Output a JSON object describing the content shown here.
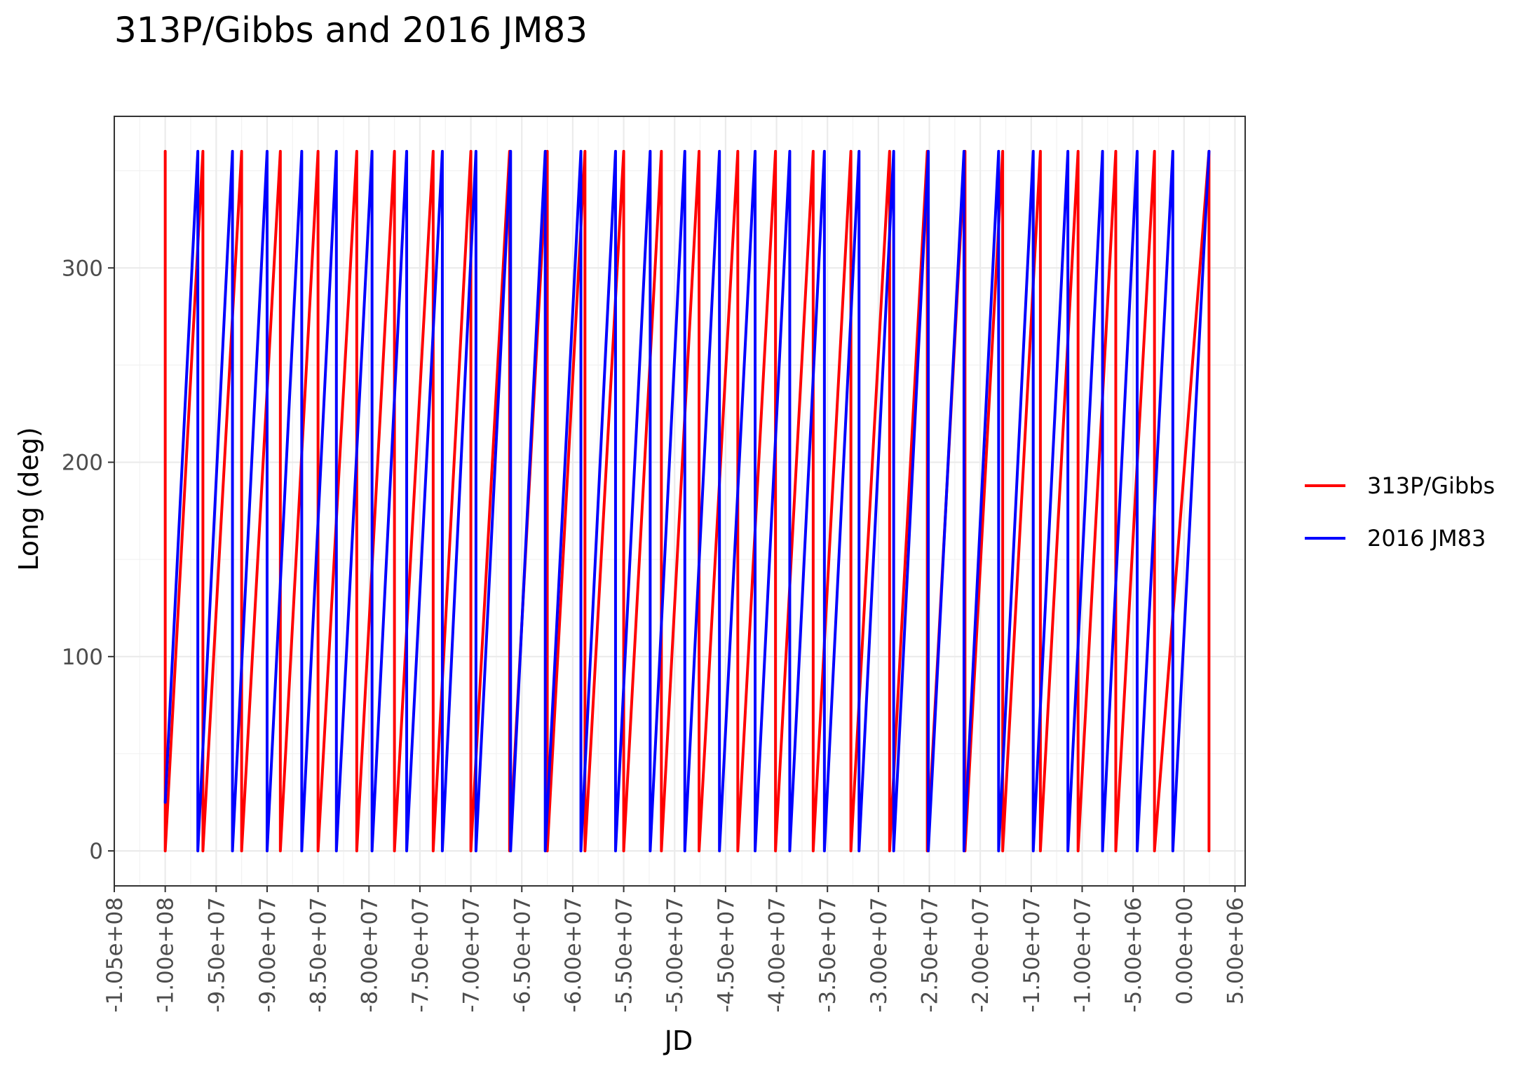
{
  "chart_data": {
    "type": "line",
    "title": "313P/Gibbs and 2016 JM83",
    "xlabel": "JD",
    "ylabel": "Long (deg)",
    "xlim": [
      -105000000,
      6000000
    ],
    "ylim": [
      -18,
      378
    ],
    "x_ticks": [
      -105000000,
      -100000000,
      -95000000,
      -90000000,
      -85000000,
      -80000000,
      -75000000,
      -70000000,
      -65000000,
      -60000000,
      -55000000,
      -50000000,
      -45000000,
      -40000000,
      -35000000,
      -30000000,
      -25000000,
      -20000000,
      -15000000,
      -10000000,
      -5000000,
      0,
      5000000
    ],
    "x_tick_labels": [
      "-1.05e+08",
      "-1.00e+08",
      "-9.50e+07",
      "-9.00e+07",
      "-8.50e+07",
      "-8.00e+07",
      "-7.50e+07",
      "-7.00e+07",
      "-6.50e+07",
      "-6.00e+07",
      "-5.50e+07",
      "-5.00e+07",
      "-4.50e+07",
      "-4.00e+07",
      "-3.50e+07",
      "-3.00e+07",
      "-2.50e+07",
      "-2.00e+07",
      "-1.50e+07",
      "-1.00e+07",
      "-5.00e+06",
      "0.00e+00",
      "5.00e+06"
    ],
    "y_ticks": [
      0,
      100,
      200,
      300
    ],
    "y_tick_labels": [
      "0",
      "100",
      "200",
      "300"
    ],
    "grid": true,
    "legend_position": "right",
    "series": [
      {
        "name": "313P/Gibbs",
        "color": "#ff0000",
        "x_start": -100000000,
        "x_end": 2450000,
        "wrap_x": [
          -100000000,
          -96300000,
          -92500000,
          -88700000,
          -85000000,
          -81200000,
          -77500000,
          -73700000,
          -70000000,
          -66200000,
          -62500000,
          -58800000,
          -55000000,
          -51300000,
          -47600000,
          -43800000,
          -40100000,
          -36400000,
          -32700000,
          -28900000,
          -25200000,
          -21500000,
          -17800000,
          -14100000,
          -10400000,
          -6700000,
          -2900000,
          2450000
        ],
        "wrap_low": 0,
        "wrap_high": 360
      },
      {
        "name": "2016 JM83",
        "color": "#0000ff",
        "x_start": -100000000,
        "x_end": 2450000,
        "start_value": 25,
        "wrap_x": [
          -96800000,
          -93400000,
          -90000000,
          -86600000,
          -83200000,
          -79700000,
          -76300000,
          -72800000,
          -69500000,
          -66100000,
          -62700000,
          -59200000,
          -55800000,
          -52400000,
          -49000000,
          -45600000,
          -42100000,
          -38700000,
          -35300000,
          -31900000,
          -28500000,
          -25100000,
          -21600000,
          -18200000,
          -14800000,
          -11400000,
          -8000000,
          -4600000,
          -1100000,
          2450000
        ],
        "wrap_low": 0,
        "wrap_high": 360
      }
    ]
  }
}
